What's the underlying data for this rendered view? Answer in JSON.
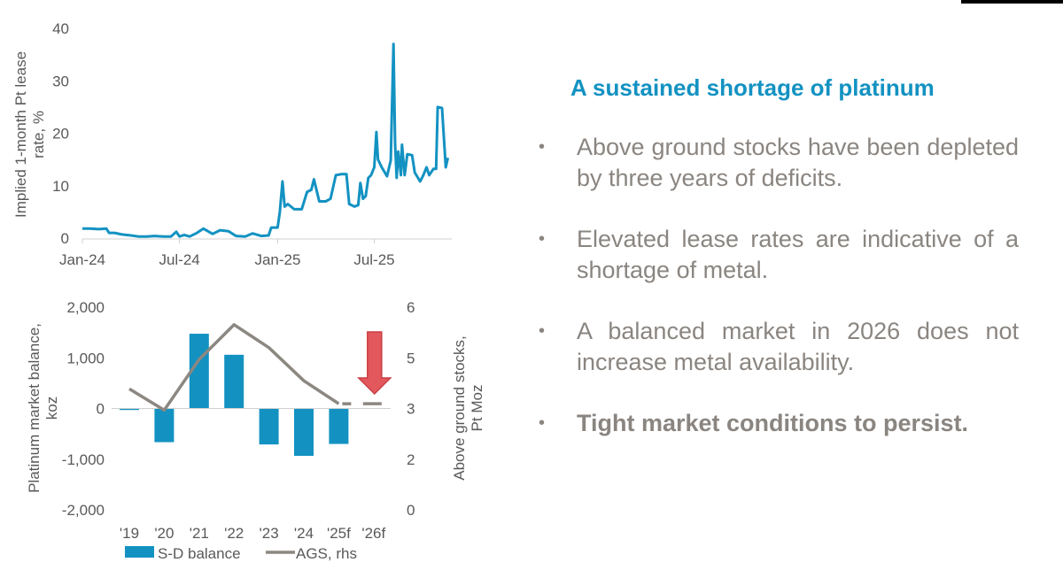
{
  "panel": {
    "title": "A sustained shortage of platinum",
    "bullets": [
      {
        "text": "Above ground stocks have been depleted by three years of deficits."
      },
      {
        "text": "Elevated lease rates are indicative of a shortage of metal."
      },
      {
        "text": "A balanced market in 2026 does not increase metal availability."
      },
      {
        "text": "Tight market conditions to persist."
      }
    ],
    "bullet_symbol": "•"
  },
  "colors": {
    "accent": "#1392c2",
    "line_gray": "#8c8781",
    "arrow_red": "#e0474c",
    "text_gray": "#8a8580"
  },
  "chart_data": [
    {
      "type": "line",
      "title": "",
      "ylabel": [
        "Implied 1-month Pt lease",
        "rate, %"
      ],
      "xlabel": "",
      "ylim": [
        0,
        40
      ],
      "yticks": [
        "0",
        "10",
        "20",
        "30",
        "40"
      ],
      "xticks": [
        {
          "label": "Jan-24",
          "date": "2024-01-01"
        },
        {
          "label": "Jul-24",
          "date": "2024-07-01"
        },
        {
          "label": "Jan-25",
          "date": "2025-01-01"
        },
        {
          "label": "Jul-25",
          "date": "2025-07-01"
        }
      ],
      "xlim": [
        "2024-01-01",
        "2025-11-20"
      ],
      "series": [
        {
          "name": "Implied 1-month Pt lease rate",
          "color": "#1392c2",
          "points": [
            [
              "2024-01-01",
              1.8
            ],
            [
              "2024-01-15",
              1.8
            ],
            [
              "2024-02-01",
              1.7
            ],
            [
              "2024-02-15",
              1.8
            ],
            [
              "2024-02-20",
              1.0
            ],
            [
              "2024-03-01",
              1.0
            ],
            [
              "2024-03-15",
              0.7
            ],
            [
              "2024-04-01",
              0.5
            ],
            [
              "2024-04-15",
              0.3
            ],
            [
              "2024-05-01",
              0.3
            ],
            [
              "2024-05-15",
              0.4
            ],
            [
              "2024-06-01",
              0.3
            ],
            [
              "2024-06-15",
              0.3
            ],
            [
              "2024-06-25",
              1.2
            ],
            [
              "2024-07-01",
              0.3
            ],
            [
              "2024-07-10",
              0.6
            ],
            [
              "2024-07-20",
              0.3
            ],
            [
              "2024-08-01",
              0.9
            ],
            [
              "2024-08-15",
              1.8
            ],
            [
              "2024-09-01",
              0.8
            ],
            [
              "2024-09-15",
              1.5
            ],
            [
              "2024-10-01",
              1.3
            ],
            [
              "2024-10-15",
              0.4
            ],
            [
              "2024-11-01",
              0.3
            ],
            [
              "2024-11-15",
              0.9
            ],
            [
              "2024-12-01",
              0.4
            ],
            [
              "2024-12-15",
              0.5
            ],
            [
              "2024-12-20",
              2.0
            ],
            [
              "2025-01-01",
              2.0
            ],
            [
              "2025-01-05",
              5.0
            ],
            [
              "2025-01-10",
              10.8
            ],
            [
              "2025-01-14",
              6.0
            ],
            [
              "2025-01-20",
              6.5
            ],
            [
              "2025-02-01",
              5.5
            ],
            [
              "2025-02-15",
              5.5
            ],
            [
              "2025-02-25",
              8.8
            ],
            [
              "2025-03-05",
              9.2
            ],
            [
              "2025-03-10",
              11.2
            ],
            [
              "2025-03-20",
              7.0
            ],
            [
              "2025-04-01",
              7.0
            ],
            [
              "2025-04-10",
              7.5
            ],
            [
              "2025-04-20",
              12.0
            ],
            [
              "2025-05-01",
              12.2
            ],
            [
              "2025-05-10",
              12.2
            ],
            [
              "2025-05-15",
              6.5
            ],
            [
              "2025-05-25",
              6.0
            ],
            [
              "2025-06-01",
              6.3
            ],
            [
              "2025-06-05",
              10.5
            ],
            [
              "2025-06-10",
              7.5
            ],
            [
              "2025-06-15",
              8.0
            ],
            [
              "2025-06-20",
              11.5
            ],
            [
              "2025-06-25",
              12.0
            ],
            [
              "2025-07-01",
              13.5
            ],
            [
              "2025-07-05",
              20.2
            ],
            [
              "2025-07-08",
              15.0
            ],
            [
              "2025-07-15",
              13.5
            ],
            [
              "2025-07-25",
              11.8
            ],
            [
              "2025-08-01",
              14.8
            ],
            [
              "2025-08-06",
              37.0
            ],
            [
              "2025-08-09",
              18.0
            ],
            [
              "2025-08-12",
              11.5
            ],
            [
              "2025-08-15",
              16.5
            ],
            [
              "2025-08-20",
              12.0
            ],
            [
              "2025-08-22",
              17.8
            ],
            [
              "2025-08-27",
              12.0
            ],
            [
              "2025-09-01",
              16.0
            ],
            [
              "2025-09-10",
              15.8
            ],
            [
              "2025-09-15",
              12.5
            ],
            [
              "2025-09-25",
              10.8
            ],
            [
              "2025-10-01",
              12.0
            ],
            [
              "2025-10-07",
              13.5
            ],
            [
              "2025-10-12",
              12.0
            ],
            [
              "2025-10-20",
              13.2
            ],
            [
              "2025-10-25",
              13.2
            ],
            [
              "2025-10-28",
              25.0
            ],
            [
              "2025-11-05",
              24.8
            ],
            [
              "2025-11-12",
              13.5
            ],
            [
              "2025-11-16",
              15.3
            ]
          ]
        }
      ]
    },
    {
      "type": "bar",
      "categories": [
        "'19",
        "'20",
        "'21",
        "'22",
        "'23",
        "'24",
        "'25f",
        "'26f"
      ],
      "ylabel": [
        "Platinum  market balance,",
        "koz"
      ],
      "y2label": [
        "Above ground stocks,",
        "Pt Moz"
      ],
      "ylim": [
        -2000,
        2000
      ],
      "y2lim": [
        0,
        6
      ],
      "yticks": [
        "-2,000",
        "-1,000",
        "0",
        "1,000",
        "2,000"
      ],
      "yticks_values": [
        -2000,
        -1000,
        0,
        1000,
        2000
      ],
      "y2ticks": [
        "0",
        "2",
        "3",
        "5",
        "6"
      ],
      "y2ticks_values": [
        0,
        1.5,
        3,
        4.5,
        6
      ],
      "series": [
        {
          "name": "S-D balance",
          "type": "bar",
          "axis": "left",
          "color": "#1392c2",
          "values": [
            -30,
            -665,
            1475,
            1060,
            -710,
            -935,
            -700,
            0
          ]
        },
        {
          "name": "AGS, rhs",
          "type": "line",
          "axis": "right",
          "color": "#8c8781",
          "values": [
            3.58,
            2.95,
            4.45,
            5.48,
            4.8,
            3.82,
            3.14,
            3.14
          ],
          "dashed_from_index": 6
        }
      ],
      "legend": {
        "position": "bottom",
        "items": [
          "S-D balance",
          "AGS, rhs"
        ]
      },
      "annotation": "down-arrow-over-26f"
    }
  ]
}
